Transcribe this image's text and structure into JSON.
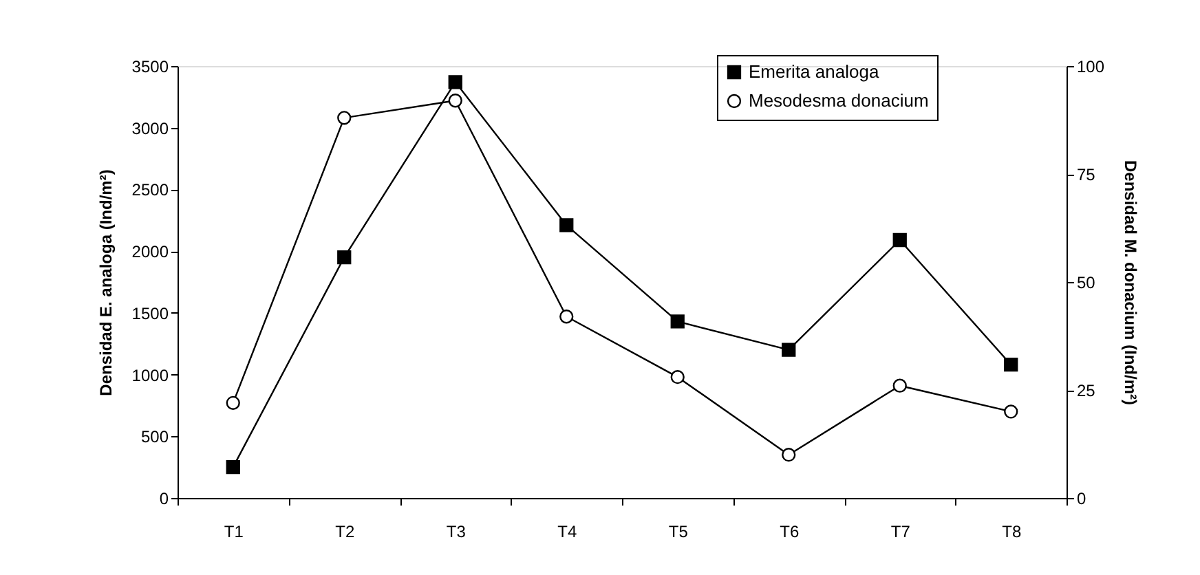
{
  "chart_data": {
    "type": "line",
    "categories": [
      "T1",
      "T2",
      "T3",
      "T4",
      "T5",
      "T6",
      "T7",
      "T8"
    ],
    "series": [
      {
        "name": "Emerita analoga",
        "color": "#000000",
        "marker": "square",
        "values": [
          250,
          1950,
          3370,
          2210,
          1430,
          1200,
          2090,
          1080
        ]
      },
      {
        "name": "Mesodesma donacium",
        "color": "#000000",
        "marker": "circle",
        "axis": "y2",
        "values": [
          22,
          88,
          92,
          42,
          28,
          10,
          26,
          20
        ]
      }
    ],
    "ylabel": "Densidad E. analoga (Ind/m²)",
    "y2label": "Densidad M. donacium (Ind/m²)",
    "ylim": [
      0,
      3500
    ],
    "yticks": [
      0,
      500,
      1000,
      1500,
      2000,
      2500,
      3000,
      3500
    ],
    "y2lim": [
      0,
      100
    ],
    "y2ticks": [
      0,
      25,
      50,
      75,
      100
    ],
    "legend": "top right",
    "grid": false,
    "line_style": "solid"
  }
}
